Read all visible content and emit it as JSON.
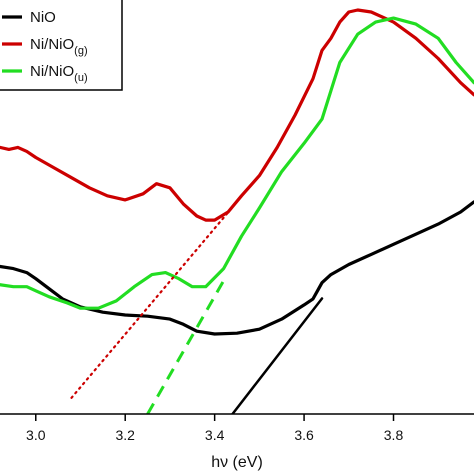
{
  "chart_data": {
    "type": "line",
    "title": "",
    "xlabel": "hν (eV)",
    "ylabel": "",
    "xlim": [
      2.92,
      3.98
    ],
    "ylim": [
      0,
      1
    ],
    "x_ticks": [
      "3.0",
      "3.2",
      "3.4",
      "3.6",
      "3.8"
    ],
    "x_tick_values": [
      3.0,
      3.2,
      3.4,
      3.6,
      3.8
    ],
    "y_ticks": [],
    "grid": false,
    "legend": {
      "position": "top-left",
      "entries": [
        {
          "base": "NiO",
          "sub": "",
          "color": "#000000"
        },
        {
          "base": "Ni/NiO",
          "sub": "(g)",
          "color": "#cc0000"
        },
        {
          "base": "Ni/NiO",
          "sub": "(u)",
          "color": "#22dd22"
        }
      ]
    },
    "series": [
      {
        "name": "NiO",
        "color": "#000000",
        "style": "solid",
        "x": [
          2.92,
          2.95,
          2.98,
          3.0,
          3.03,
          3.06,
          3.1,
          3.15,
          3.2,
          3.25,
          3.3,
          3.33,
          3.36,
          3.4,
          3.45,
          3.5,
          3.55,
          3.6,
          3.62,
          3.63,
          3.64,
          3.66,
          3.7,
          3.75,
          3.8,
          3.85,
          3.9,
          3.95,
          3.98
        ],
        "y": [
          0.365,
          0.36,
          0.35,
          0.335,
          0.31,
          0.285,
          0.265,
          0.252,
          0.245,
          0.242,
          0.235,
          0.222,
          0.205,
          0.198,
          0.2,
          0.21,
          0.235,
          0.27,
          0.285,
          0.305,
          0.325,
          0.345,
          0.37,
          0.395,
          0.42,
          0.445,
          0.47,
          0.5,
          0.525
        ]
      },
      {
        "name": "Ni/NiO(g)",
        "color": "#cc0000",
        "style": "solid",
        "x": [
          2.92,
          2.94,
          2.96,
          2.98,
          3.0,
          3.04,
          3.08,
          3.12,
          3.16,
          3.2,
          3.24,
          3.27,
          3.3,
          3.33,
          3.36,
          3.38,
          3.4,
          3.43,
          3.46,
          3.5,
          3.54,
          3.58,
          3.62,
          3.64,
          3.66,
          3.68,
          3.7,
          3.72,
          3.75,
          3.8,
          3.85,
          3.9,
          3.95,
          3.98
        ],
        "y": [
          0.66,
          0.655,
          0.66,
          0.65,
          0.635,
          0.61,
          0.585,
          0.56,
          0.54,
          0.53,
          0.545,
          0.57,
          0.56,
          0.52,
          0.49,
          0.48,
          0.48,
          0.5,
          0.54,
          0.59,
          0.66,
          0.74,
          0.83,
          0.9,
          0.93,
          0.97,
          0.995,
          1.0,
          0.995,
          0.97,
          0.93,
          0.88,
          0.82,
          0.79
        ]
      },
      {
        "name": "Ni/NiO(u)",
        "color": "#22dd22",
        "style": "solid",
        "x": [
          2.92,
          2.95,
          2.98,
          3.0,
          3.03,
          3.07,
          3.1,
          3.14,
          3.18,
          3.22,
          3.26,
          3.29,
          3.32,
          3.35,
          3.38,
          3.42,
          3.46,
          3.5,
          3.55,
          3.6,
          3.64,
          3.66,
          3.68,
          3.72,
          3.76,
          3.8,
          3.85,
          3.9,
          3.94,
          3.98
        ],
        "y": [
          0.32,
          0.315,
          0.315,
          0.305,
          0.29,
          0.275,
          0.262,
          0.262,
          0.28,
          0.315,
          0.345,
          0.35,
          0.335,
          0.315,
          0.315,
          0.36,
          0.44,
          0.51,
          0.6,
          0.67,
          0.73,
          0.8,
          0.87,
          0.94,
          0.97,
          0.98,
          0.965,
          0.93,
          0.87,
          0.82
        ]
      },
      {
        "name": "",
        "color": "#000000",
        "style": "solid-fit",
        "x": [
          3.44,
          3.64
        ],
        "y": [
          0.0,
          0.286
        ]
      },
      {
        "name": "",
        "color": "#cc0000",
        "style": "dotted",
        "x": [
          3.08,
          3.44
        ],
        "y": [
          0.04,
          0.512
        ]
      },
      {
        "name": "",
        "color": "#22dd22",
        "style": "dashed",
        "x": [
          3.25,
          3.42
        ],
        "y": [
          0.0,
          0.33
        ]
      }
    ]
  }
}
